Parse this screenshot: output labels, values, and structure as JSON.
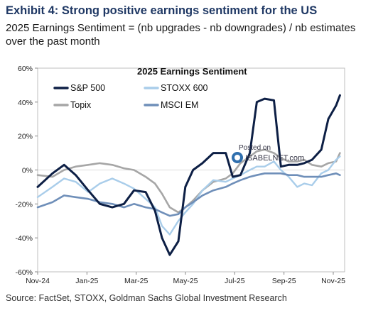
{
  "header": {
    "exhibit_title": "Exhibit 4: Strong positive earnings sentiment for the US",
    "subtitle": "2025 Earnings Sentiment = (nb upgrades - nb downgrades) / nb estimates over the past month"
  },
  "footer": {
    "source": "Source: FactSet, STOXX, Goldman Sachs Global Investment Research"
  },
  "watermark": {
    "line1": "Posted on",
    "line2": "ISABELNET.com"
  },
  "colors": {
    "sp500": "#0d1f45",
    "stoxx600": "#a9cdea",
    "topix": "#a6a6a6",
    "msci_em": "#6f8fb9"
  },
  "chart_data": {
    "type": "line",
    "title": "2025 Earnings Sentiment",
    "xlabel": "",
    "ylabel": "",
    "x_ticks": [
      "Nov-24",
      "Jan-25",
      "Mar-25",
      "May-25",
      "Jul-25",
      "Sep-25",
      "Nov-25"
    ],
    "y_ticks": [
      "60%",
      "40%",
      "20%",
      "0%",
      "-20%",
      "-40%",
      "-60%"
    ],
    "ylim": [
      -60,
      60
    ],
    "x_range": [
      "2024-11-01",
      "2025-12-01"
    ],
    "grid": false,
    "legend_position": "top",
    "series": [
      {
        "name": "S&P 500",
        "x": [
          "2024-11-01",
          "2024-11-20",
          "2024-12-05",
          "2024-12-20",
          "2025-01-05",
          "2025-01-20",
          "2025-02-05",
          "2025-02-20",
          "2025-03-05",
          "2025-03-20",
          "2025-04-01",
          "2025-04-10",
          "2025-04-20",
          "2025-05-01",
          "2025-05-10",
          "2025-05-20",
          "2025-06-01",
          "2025-06-15",
          "2025-07-01",
          "2025-07-10",
          "2025-07-20",
          "2025-08-01",
          "2025-08-10",
          "2025-08-20",
          "2025-09-01",
          "2025-09-10",
          "2025-09-20",
          "2025-10-01",
          "2025-10-10",
          "2025-10-20",
          "2025-11-01",
          "2025-11-10",
          "2025-11-20",
          "2025-11-25"
        ],
        "values": [
          -10,
          -2,
          3,
          -3,
          -12,
          -20,
          -22,
          -20,
          -12,
          -13,
          -24,
          -40,
          -50,
          -42,
          -10,
          0,
          4,
          10,
          10,
          -4,
          -3,
          10,
          40,
          42,
          41,
          2,
          3,
          3,
          4,
          6,
          12,
          30,
          38,
          44
        ]
      },
      {
        "name": "STOXX 600",
        "x": [
          "2024-11-01",
          "2024-11-20",
          "2024-12-05",
          "2024-12-20",
          "2025-01-05",
          "2025-01-20",
          "2025-02-05",
          "2025-02-20",
          "2025-03-05",
          "2025-03-20",
          "2025-04-01",
          "2025-04-10",
          "2025-04-20",
          "2025-05-01",
          "2025-05-10",
          "2025-05-20",
          "2025-06-01",
          "2025-06-15",
          "2025-07-01",
          "2025-07-10",
          "2025-07-20",
          "2025-08-01",
          "2025-08-10",
          "2025-08-20",
          "2025-09-01",
          "2025-09-10",
          "2025-09-20",
          "2025-10-01",
          "2025-10-10",
          "2025-10-20",
          "2025-11-01",
          "2025-11-10",
          "2025-11-20",
          "2025-11-25"
        ],
        "values": [
          -16,
          -10,
          -5,
          -7,
          -13,
          -8,
          -5,
          -8,
          -11,
          -17,
          -22,
          -33,
          -38,
          -30,
          -25,
          -20,
          -12,
          -6,
          -7,
          -5,
          -3,
          0,
          2,
          2,
          5,
          0,
          -4,
          -10,
          -8,
          -9,
          -2,
          0,
          6,
          8
        ]
      },
      {
        "name": "Topix",
        "x": [
          "2024-11-01",
          "2024-11-20",
          "2024-12-05",
          "2024-12-20",
          "2025-01-05",
          "2025-01-20",
          "2025-02-05",
          "2025-02-20",
          "2025-03-05",
          "2025-03-20",
          "2025-04-01",
          "2025-04-10",
          "2025-04-20",
          "2025-05-01",
          "2025-05-10",
          "2025-05-20",
          "2025-06-01",
          "2025-06-15",
          "2025-07-01",
          "2025-07-10",
          "2025-07-20",
          "2025-08-01",
          "2025-08-10",
          "2025-08-20",
          "2025-09-01",
          "2025-09-10",
          "2025-09-20",
          "2025-10-01",
          "2025-10-10",
          "2025-10-20",
          "2025-11-01",
          "2025-11-10",
          "2025-11-20",
          "2025-11-25"
        ],
        "values": [
          -3,
          -4,
          0,
          2,
          3,
          4,
          3,
          1,
          0,
          -4,
          -8,
          -14,
          -22,
          -25,
          -22,
          -18,
          -12,
          -7,
          -5,
          -2,
          4,
          8,
          11,
          12,
          10,
          7,
          5,
          5,
          6,
          3,
          2,
          4,
          5,
          10
        ]
      },
      {
        "name": "MSCI EM",
        "x": [
          "2024-11-01",
          "2024-11-20",
          "2024-12-05",
          "2024-12-20",
          "2025-01-05",
          "2025-01-20",
          "2025-02-05",
          "2025-02-20",
          "2025-03-05",
          "2025-03-20",
          "2025-04-01",
          "2025-04-10",
          "2025-04-20",
          "2025-05-01",
          "2025-05-10",
          "2025-05-20",
          "2025-06-01",
          "2025-06-15",
          "2025-07-01",
          "2025-07-10",
          "2025-07-20",
          "2025-08-01",
          "2025-08-10",
          "2025-08-20",
          "2025-09-01",
          "2025-09-10",
          "2025-09-20",
          "2025-10-01",
          "2025-10-10",
          "2025-10-20",
          "2025-11-01",
          "2025-11-10",
          "2025-11-20",
          "2025-11-25"
        ],
        "values": [
          -22,
          -19,
          -15,
          -16,
          -17,
          -19,
          -20,
          -22,
          -20,
          -22,
          -23,
          -25,
          -27,
          -26,
          -22,
          -19,
          -15,
          -12,
          -10,
          -8,
          -6,
          -4,
          -3,
          -2,
          -2,
          -2,
          -3,
          -3,
          -4,
          -4,
          -4,
          -3,
          -2,
          -3
        ]
      }
    ]
  }
}
